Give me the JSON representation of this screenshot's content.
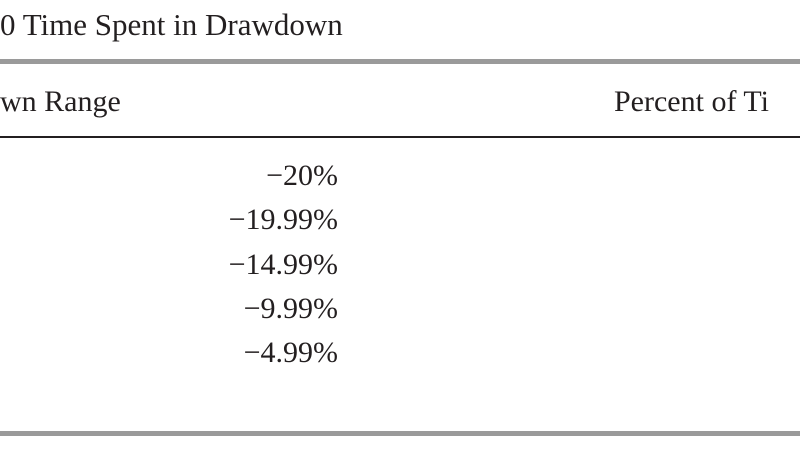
{
  "header": {
    "title": "0 Time Spent in Drawdown"
  },
  "table": {
    "columns": [
      "wn Range",
      "Percent of Ti"
    ],
    "rows": [
      [
        "−20%"
      ],
      [
        "−19.99%"
      ],
      [
        "−14.99%"
      ],
      [
        "−9.99%"
      ],
      [
        "−4.99%"
      ]
    ]
  }
}
